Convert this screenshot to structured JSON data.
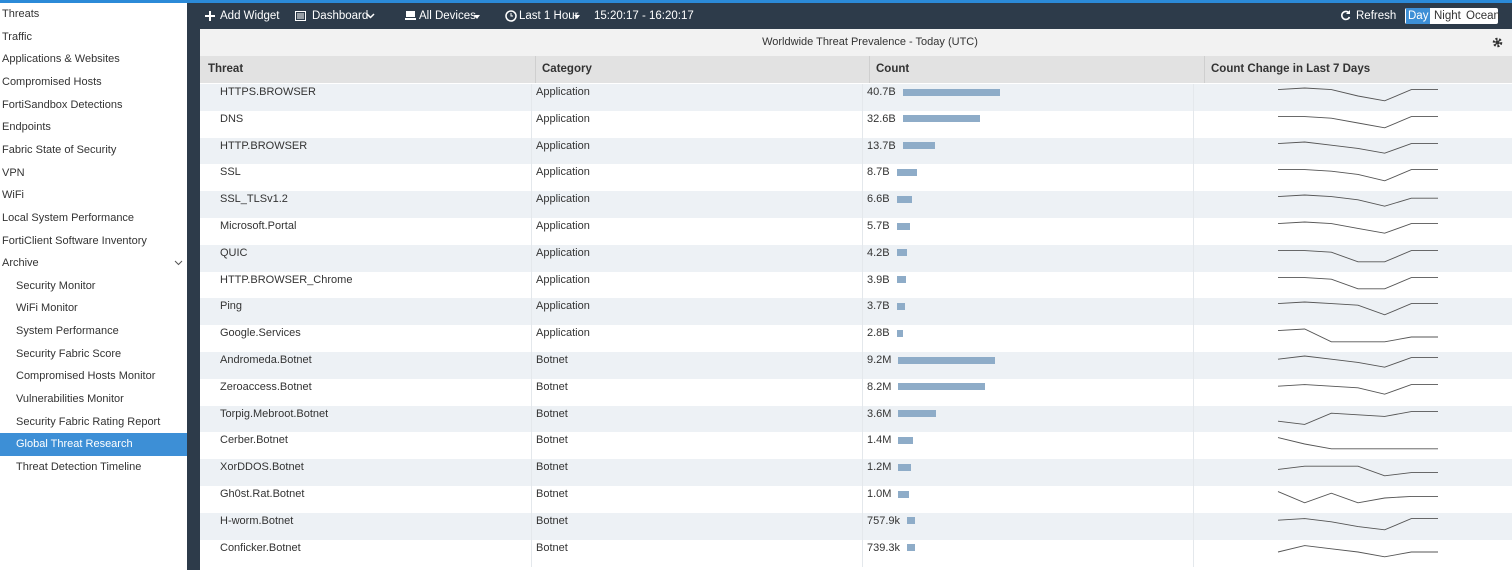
{
  "sidebar": {
    "items": [
      "Threats",
      "Traffic",
      "Applications & Websites",
      "Compromised Hosts",
      "FortiSandbox Detections",
      "Endpoints",
      "Fabric State of Security",
      "VPN",
      "WiFi",
      "Local System Performance",
      "FortiClient Software Inventory"
    ],
    "archive": {
      "label": "Archive",
      "items": [
        "Security Monitor",
        "WiFi Monitor",
        "System Performance",
        "Security Fabric Score",
        "Compromised Hosts Monitor",
        "Vulnerabilities Monitor",
        "Security Fabric Rating Report",
        "Global Threat Research",
        "Threat Detection Timeline"
      ],
      "selected": 7
    }
  },
  "toolbar": {
    "add_widget": "Add Widget",
    "dashboard": "Dashboard",
    "devices": "All Devices",
    "time_range": "Last 1 Hour",
    "time_span": "15:20:17 - 16:20:17",
    "refresh": "Refresh",
    "themes": [
      "Day",
      "Night",
      "Ocean"
    ],
    "theme_selected": 0
  },
  "widget": {
    "title": "Worldwide Threat Prevalence - Today (UTC)",
    "columns": [
      "Threat",
      "Category",
      "Count",
      "Count Change in Last 7 Days"
    ],
    "rows": [
      {
        "threat": "HTTPS.BROWSER",
        "category": "Application",
        "count": {
          "value": 40700000000,
          "label": "40.7B"
        },
        "trend": [
          9,
          10,
          9,
          5,
          2,
          9,
          9
        ]
      },
      {
        "threat": "DNS",
        "category": "Application",
        "count": {
          "value": 32600000000,
          "label": "32.6B"
        },
        "trend": [
          9,
          9,
          8,
          5,
          2,
          9,
          9
        ]
      },
      {
        "threat": "HTTP.BROWSER",
        "category": "Application",
        "count": {
          "value": 13700000000,
          "label": "13.7B"
        },
        "trend": [
          9,
          10,
          8,
          6,
          3,
          9,
          9
        ]
      },
      {
        "threat": "SSL",
        "category": "Application",
        "count": {
          "value": 8700000000,
          "label": "8.7B"
        },
        "trend": [
          9,
          9,
          8,
          6,
          2,
          9,
          9
        ]
      },
      {
        "threat": "SSL_TLSv1.2",
        "category": "Application",
        "count": {
          "value": 6600000000,
          "label": "6.6B"
        },
        "trend": [
          9,
          10,
          9,
          7,
          3,
          8,
          8
        ]
      },
      {
        "threat": "Microsoft.Portal",
        "category": "Application",
        "count": {
          "value": 5700000000,
          "label": "5.7B"
        },
        "trend": [
          9,
          10,
          9,
          6,
          3,
          9,
          9
        ]
      },
      {
        "threat": "QUIC",
        "category": "Application",
        "count": {
          "value": 4200000000,
          "label": "4.2B"
        },
        "trend": [
          9,
          9,
          8,
          2,
          2,
          9,
          9
        ]
      },
      {
        "threat": "HTTP.BROWSER_Chrome",
        "category": "Application",
        "count": {
          "value": 3900000000,
          "label": "3.9B"
        },
        "trend": [
          9,
          9,
          8,
          2,
          2,
          9,
          9
        ]
      },
      {
        "threat": "Ping",
        "category": "Application",
        "count": {
          "value": 3700000000,
          "label": "3.7B"
        },
        "trend": [
          9,
          10,
          9,
          8,
          2,
          9,
          9
        ]
      },
      {
        "threat": "Google.Services",
        "category": "Application",
        "count": {
          "value": 2800000000,
          "label": "2.8B"
        },
        "trend": [
          9,
          10,
          2,
          2,
          2,
          5,
          5
        ]
      },
      {
        "threat": "Andromeda.Botnet",
        "category": "Botnet",
        "count": {
          "value": 9200000,
          "label": "9.2M"
        },
        "trend": [
          8,
          10,
          8,
          6,
          3,
          9,
          9
        ]
      },
      {
        "threat": "Zeroaccess.Botnet",
        "category": "Botnet",
        "count": {
          "value": 8200000,
          "label": "8.2M"
        },
        "trend": [
          8,
          9,
          8,
          7,
          3,
          9,
          9
        ]
      },
      {
        "threat": "Torpig.Mebroot.Botnet",
        "category": "Botnet",
        "count": {
          "value": 3600000,
          "label": "3.6M"
        },
        "trend": [
          3,
          1,
          8,
          7,
          6,
          9,
          9
        ]
      },
      {
        "threat": "Cerber.Botnet",
        "category": "Botnet",
        "count": {
          "value": 1400000,
          "label": "1.4M"
        },
        "trend": [
          9,
          5,
          2,
          2,
          2,
          2,
          2
        ]
      },
      {
        "threat": "XorDDOS.Botnet",
        "category": "Botnet",
        "count": {
          "value": 1200000,
          "label": "1.2M"
        },
        "trend": [
          6,
          8,
          8,
          8,
          2,
          4,
          4
        ]
      },
      {
        "threat": "Gh0st.Rat.Botnet",
        "category": "Botnet",
        "count": {
          "value": 1000000,
          "label": "1.0M"
        },
        "trend": [
          9,
          2,
          8,
          2,
          5,
          6,
          6
        ]
      },
      {
        "threat": "H-worm.Botnet",
        "category": "Botnet",
        "count": {
          "value": 757900,
          "label": "757.9k"
        },
        "trend": [
          8,
          9,
          7,
          4,
          2,
          9,
          9
        ]
      },
      {
        "threat": "Conficker.Botnet",
        "category": "Botnet",
        "count": {
          "value": 739300,
          "label": "739.3k"
        },
        "trend": [
          5,
          9,
          7,
          5,
          2,
          5,
          5
        ]
      }
    ]
  }
}
